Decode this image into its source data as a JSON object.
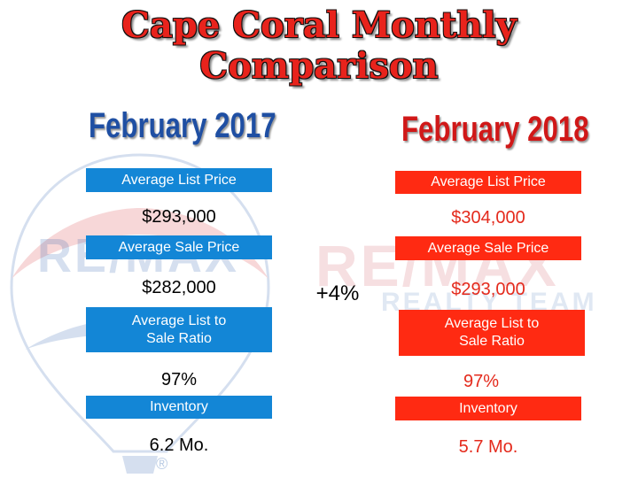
{
  "title": {
    "line1": "Cape Coral Monthly",
    "line2": "Comparison"
  },
  "watermark": {
    "logo_text": "RE/MAX",
    "realty_text": "REALTY TEAM",
    "registered_mark": "®"
  },
  "colors": {
    "title_red": "#e8231c",
    "heading_blue": "#1f4fa3",
    "heading_red": "#d01818",
    "box_blue": "#1386d6",
    "box_red": "#ff2a12"
  },
  "change_label": "+4%",
  "columns": [
    {
      "heading": "February 2017",
      "metrics": [
        {
          "label": "Average List Price",
          "value": "$293,000"
        },
        {
          "label": "Average Sale Price",
          "value": "$282,000"
        },
        {
          "label": "Average List to\nSale Ratio",
          "value": "97%"
        },
        {
          "label": "Inventory",
          "value": "6.2 Mo."
        }
      ]
    },
    {
      "heading": "February 2018",
      "metrics": [
        {
          "label": "Average List Price",
          "value": "$304,000"
        },
        {
          "label": "Average Sale Price",
          "value": "$293,000"
        },
        {
          "label": "Average List to\nSale Ratio",
          "value": "97%"
        },
        {
          "label": "Inventory",
          "value": "5.7 Mo."
        }
      ]
    }
  ]
}
